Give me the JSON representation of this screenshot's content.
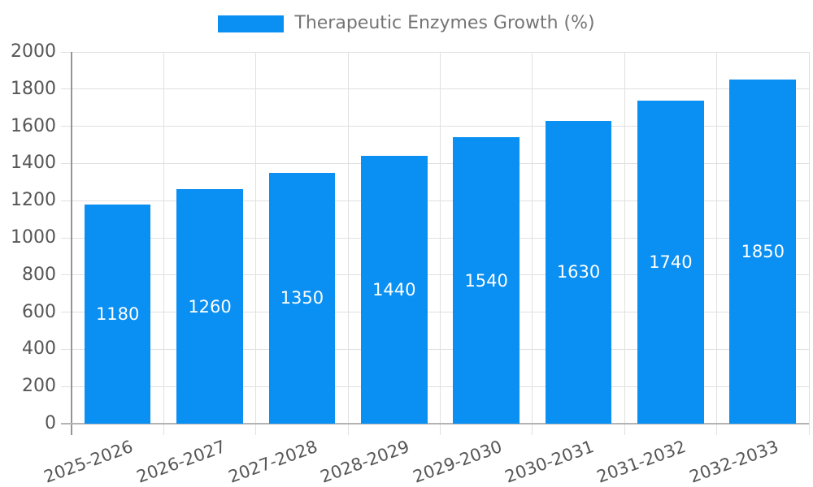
{
  "chart_data": {
    "type": "bar",
    "title": "Therapeutic Enzymes Growth (%)",
    "categories": [
      "2025-2026",
      "2026-2027",
      "2027-2028",
      "2028-2029",
      "2029-2030",
      "2030-2031",
      "2031-2032",
      "2032-2033"
    ],
    "values": [
      1180,
      1260,
      1350,
      1440,
      1540,
      1630,
      1740,
      1850
    ],
    "xlabel": "",
    "ylabel": "",
    "ylim": [
      0,
      2000
    ],
    "ytick_step": 200,
    "grid": true,
    "legend_position": "top"
  },
  "colors": {
    "bar": "#0a8ff2",
    "bar_value_label": "#ffffff",
    "axis_text": "#565656",
    "legend_text": "#757575",
    "gridline": "#e0e0e0",
    "axis_line": "#959595",
    "baseline": "#b3b3b3",
    "background": "#ffffff"
  }
}
